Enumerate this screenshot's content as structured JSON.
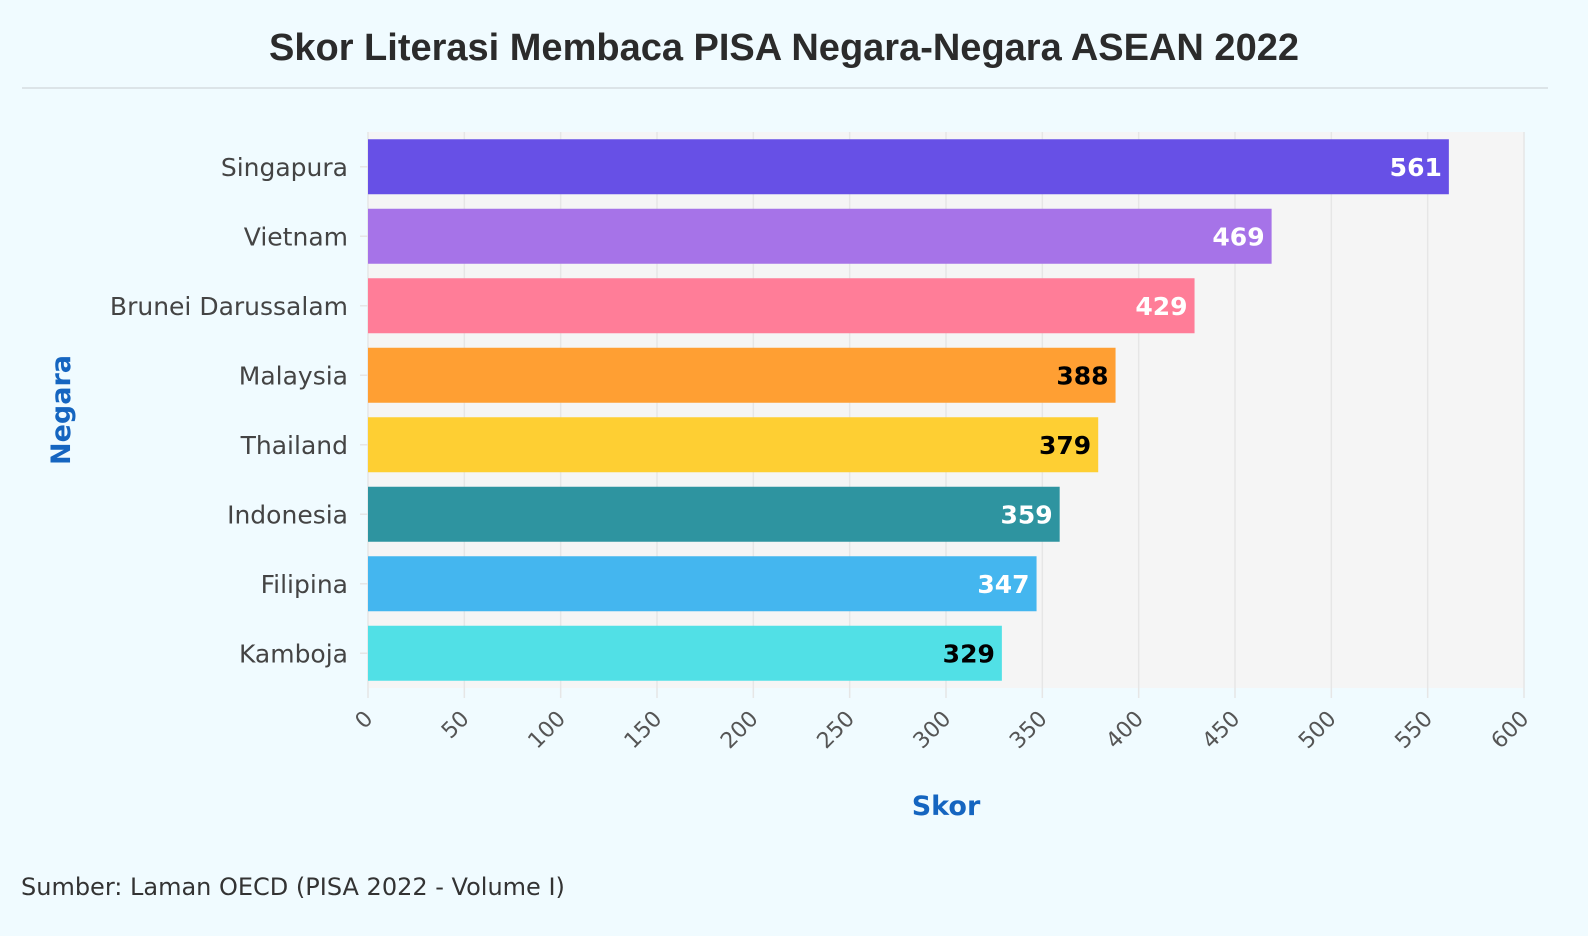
{
  "chart_data": {
    "type": "bar",
    "orientation": "horizontal",
    "title": "Skor Literasi Membaca PISA Negara-Negara ASEAN 2022",
    "xlabel": "Skor",
    "ylabel": "Negara",
    "categories": [
      "Singapura",
      "Vietnam",
      "Brunei Darussalam",
      "Malaysia",
      "Thailand",
      "Indonesia",
      "Filipina",
      "Kamboja"
    ],
    "values": [
      561,
      469,
      429,
      388,
      379,
      359,
      347,
      329
    ],
    "colors": [
      "#6750e6",
      "#a673e8",
      "#ff7d98",
      "#ff9f33",
      "#fecf33",
      "#2e94a0",
      "#44b6ef",
      "#51e0e6"
    ],
    "label_colors": [
      "#ffffff",
      "#ffffff",
      "#ffffff",
      "#000000",
      "#000000",
      "#ffffff",
      "#ffffff",
      "#000000"
    ],
    "xlim": [
      0,
      600
    ],
    "xticks": [
      "0",
      "50",
      "100",
      "150",
      "200",
      "250",
      "300",
      "350",
      "400",
      "450",
      "500",
      "550",
      "600"
    ],
    "grid": true,
    "legend": "none"
  },
  "source": "Sumber: Laman OECD (PISA 2022 - Volume I)"
}
